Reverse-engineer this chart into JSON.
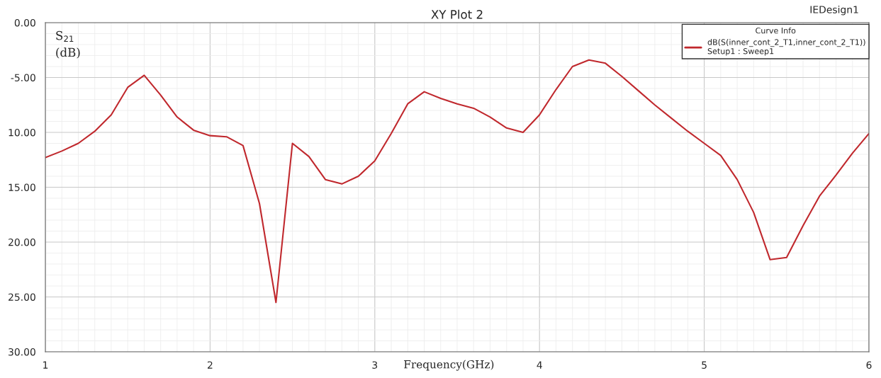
{
  "chart_data": {
    "type": "line",
    "title": "XY Plot 2",
    "xlabel": "Frequency(GHz)",
    "ylabel": "S$_{21}$\n(dB)",
    "legend_title": "Curve Info",
    "annotations": [
      "IEDesign1"
    ],
    "x": [
      1.0,
      1.1,
      1.2,
      1.3,
      1.4,
      1.5,
      1.6,
      1.7,
      1.8,
      1.9,
      2.0,
      2.1,
      2.2,
      2.3,
      2.4,
      2.5,
      2.6,
      2.7,
      2.8,
      2.9,
      3.0,
      3.1,
      3.2,
      3.3,
      3.4,
      3.5,
      3.6,
      3.7,
      3.8,
      3.9,
      4.0,
      4.1,
      4.2,
      4.3,
      4.4,
      4.5,
      4.6,
      4.7,
      4.8,
      4.9,
      5.0,
      5.1,
      5.2,
      5.3,
      5.4,
      5.5,
      5.6,
      5.7,
      5.8,
      5.9,
      6.0
    ],
    "series": [
      {
        "name": "dB(S(inner_cont_2_T1,inner_cont_2_T1))\nSetup1 : Sweep1",
        "color": "#c0282d",
        "values": [
          -12.3,
          -11.7,
          -11.0,
          -9.9,
          -8.4,
          -5.9,
          -4.8,
          -6.6,
          -8.6,
          -9.8,
          -10.3,
          -10.4,
          -11.2,
          -16.5,
          -25.5,
          -11.0,
          -12.2,
          -14.3,
          -14.7,
          -14.0,
          -12.6,
          -10.1,
          -7.4,
          -6.3,
          -6.9,
          -7.4,
          -7.8,
          -8.6,
          -9.6,
          -10.0,
          -8.4,
          -6.1,
          -4.0,
          -3.4,
          -3.7,
          -4.9,
          -6.2,
          -7.5,
          -8.7,
          -9.9,
          -11.0,
          -12.1,
          -14.3,
          -17.3,
          -21.6,
          -21.4,
          -18.5,
          -15.8,
          -13.9,
          -11.9,
          -10.1
        ]
      }
    ],
    "xlim": [
      1,
      6
    ],
    "xticks": [
      1,
      2,
      3,
      4,
      5,
      6
    ],
    "ylim": [
      -30,
      0
    ],
    "yticks": [
      {
        "value": 0,
        "label": "0.00"
      },
      {
        "value": -5,
        "label": "-5.00"
      },
      {
        "value": -10,
        "label": "10.00"
      },
      {
        "value": -15,
        "label": "15.00"
      },
      {
        "value": -20,
        "label": "20.00"
      },
      {
        "value": -25,
        "label": "25.00"
      },
      {
        "value": -30,
        "label": "30.00"
      }
    ],
    "grid": true,
    "legend": "top right",
    "marker": "none",
    "line_style": "solid"
  }
}
